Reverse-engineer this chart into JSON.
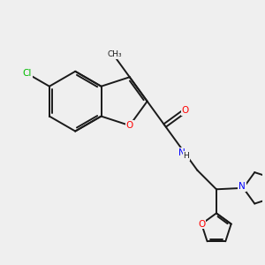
{
  "background_color": "#efefef",
  "bond_color": "#1a1a1a",
  "atom_colors": {
    "O": "#ff0000",
    "N": "#0000ff",
    "Cl": "#00bb00",
    "C": "#1a1a1a",
    "H": "#1a1a1a"
  },
  "figsize": [
    3.0,
    3.0
  ],
  "dpi": 100
}
